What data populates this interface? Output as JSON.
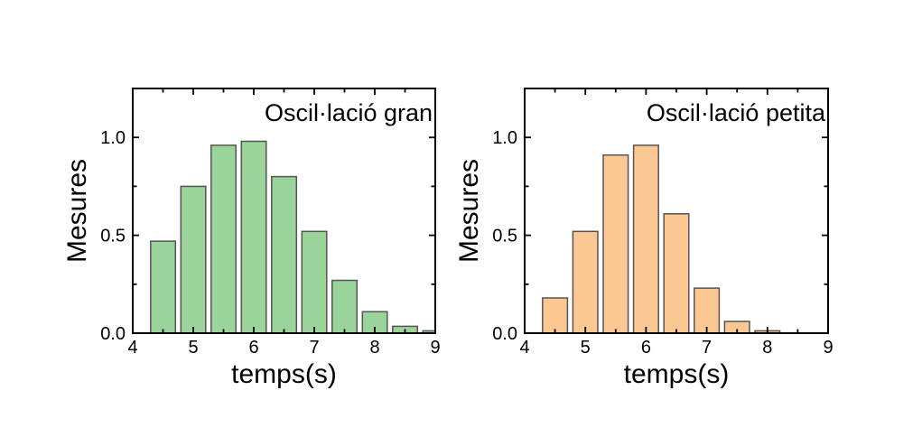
{
  "figure": {
    "background": "#ffffff",
    "frame_color": "#000000",
    "text_color": "#000000"
  },
  "chart_data": [
    {
      "type": "bar",
      "title": "Oscil·lació gran",
      "xlabel": "temps(s)",
      "ylabel": "Mesures",
      "x": [
        4.5,
        5.0,
        5.5,
        6.0,
        6.5,
        7.0,
        7.5,
        8.0,
        8.5,
        9.0
      ],
      "values": [
        0.47,
        0.75,
        0.96,
        0.98,
        0.8,
        0.52,
        0.27,
        0.11,
        0.035,
        0.012
      ],
      "bar_width": 0.41,
      "bar_fill": "#9ad49a",
      "bar_stroke": "#555555",
      "xlim": [
        4,
        9
      ],
      "ylim": [
        0,
        1.25
      ],
      "x_major_ticks": [
        4,
        5,
        6,
        7,
        8,
        9
      ],
      "x_major_labels": [
        "4",
        "5",
        "6",
        "7",
        "8",
        "9"
      ],
      "x_minor_ticks": [
        4.5,
        5.5,
        6.5,
        7.5,
        8.5
      ],
      "y_major_ticks": [
        0,
        0.5,
        1.0
      ],
      "y_major_labels": [
        "0.0",
        "0.5",
        "1.0"
      ],
      "y_minor_ticks": [
        0.25,
        0.75
      ],
      "grid": false,
      "legend": null,
      "tick_direction": "in"
    },
    {
      "type": "bar",
      "title": "Oscil·lació petita",
      "xlabel": "temps(s)",
      "ylabel": "Mesures",
      "x": [
        4.5,
        5.0,
        5.5,
        6.0,
        6.5,
        7.0,
        7.5,
        8.0
      ],
      "values": [
        0.18,
        0.52,
        0.91,
        0.96,
        0.61,
        0.23,
        0.06,
        0.012
      ],
      "bar_width": 0.41,
      "bar_fill": "#fbc894",
      "bar_stroke": "#555555",
      "xlim": [
        4,
        9
      ],
      "ylim": [
        0,
        1.25
      ],
      "x_major_ticks": [
        4,
        5,
        6,
        7,
        8,
        9
      ],
      "x_major_labels": [
        "4",
        "5",
        "6",
        "7",
        "8",
        "9"
      ],
      "x_minor_ticks": [
        4.5,
        5.5,
        6.5,
        7.5,
        8.5
      ],
      "y_major_ticks": [
        0,
        0.5,
        1.0
      ],
      "y_major_labels": [
        "0.0",
        "0.5",
        "1.0"
      ],
      "y_minor_ticks": [
        0.25,
        0.75
      ],
      "grid": false,
      "legend": null,
      "tick_direction": "in"
    }
  ]
}
